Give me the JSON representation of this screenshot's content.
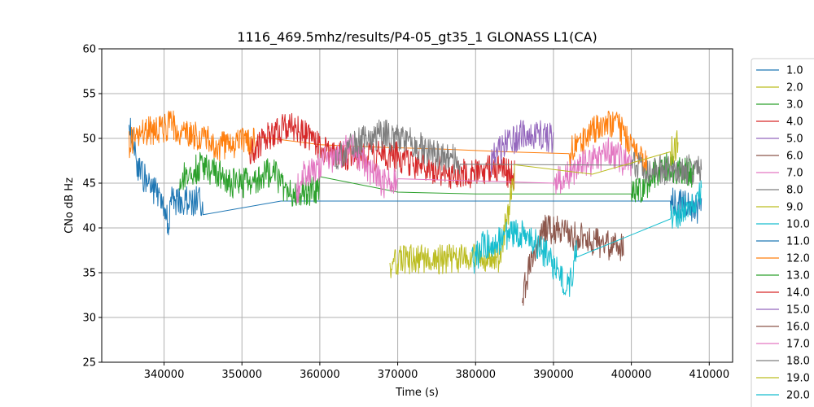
{
  "chart_data": {
    "type": "line",
    "title": "1116_469.5mhz/results/P4-05_gt35_1 GLONASS L1(CA)",
    "xlabel": "Time (s)",
    "ylabel": "CNo dB Hz",
    "xlim": [
      332000,
      413000
    ],
    "ylim": [
      25,
      60
    ],
    "xticks": [
      340000,
      350000,
      360000,
      370000,
      380000,
      390000,
      400000,
      410000
    ],
    "yticks": [
      25,
      30,
      35,
      40,
      45,
      50,
      55,
      60
    ],
    "grid": true,
    "legend_placement": "right-outside",
    "series": [
      {
        "name": "1.0",
        "color": "#1f77b4",
        "x": [],
        "y": []
      },
      {
        "name": "2.0",
        "color": "#bcbd22",
        "x": [],
        "y": []
      },
      {
        "name": "3.0",
        "color": "#2ca02c",
        "x": [],
        "y": []
      },
      {
        "name": "4.0",
        "color": "#d62728",
        "x": [],
        "y": []
      },
      {
        "name": "5.0",
        "color": "#9467bd",
        "x": [],
        "y": []
      },
      {
        "name": "6.0",
        "color": "#8c564b",
        "x": [],
        "y": []
      },
      {
        "name": "7.0",
        "color": "#e377c2",
        "x": [],
        "y": []
      },
      {
        "name": "8.0",
        "color": "#7f7f7f",
        "x": [],
        "y": []
      },
      {
        "name": "9.0",
        "color": "#bcbd22",
        "x": [],
        "y": []
      },
      {
        "name": "10.0",
        "color": "#17becf",
        "x": [],
        "y": []
      },
      {
        "name": "11.0",
        "color": "#1f77b4",
        "x": [
          335500,
          336000,
          337000,
          338000,
          339000,
          340000,
          340500,
          341000,
          345000,
          355000,
          365000,
          375000,
          385000,
          395000,
          405000,
          409000
        ],
        "y": [
          51.5,
          49,
          46,
          45,
          44,
          42,
          40.5,
          43,
          43,
          43,
          43,
          43,
          43,
          43,
          43,
          42
        ]
      },
      {
        "name": "12.0",
        "color": "#ff7f0e",
        "x": [
          335500,
          337000,
          339000,
          341000,
          343000,
          345000,
          347000,
          348500,
          352000,
          360000,
          368000,
          376000,
          384000,
          392000,
          394000,
          396000,
          398000,
          400000,
          402000
        ],
        "y": [
          49.5,
          50.5,
          51,
          51.5,
          50.5,
          50,
          49,
          49.5,
          49.5,
          49.3,
          49,
          48.8,
          48.5,
          48.3,
          50,
          51.5,
          51.5,
          49.5,
          47
        ]
      },
      {
        "name": "13.0",
        "color": "#2ca02c",
        "x": [
          342000,
          343000,
          345000,
          347000,
          348000,
          350000,
          352000,
          354000,
          355000,
          356000,
          360000,
          370000,
          380000,
          390000,
          400000,
          402000,
          404000,
          406000,
          408000
        ],
        "y": [
          45,
          46,
          47,
          46,
          45,
          45,
          45.5,
          46.5,
          45,
          44,
          44.3,
          44,
          43.8,
          43.8,
          43.8,
          45,
          47,
          46.5,
          46
        ]
      },
      {
        "name": "14.0",
        "color": "#d62728",
        "x": [
          351000,
          353000,
          355000,
          356000,
          357000,
          358000,
          359000,
          360000,
          362000,
          365000,
          367000,
          370000,
          374000,
          377000,
          379000,
          382000,
          385000
        ],
        "y": [
          48,
          50,
          51,
          51.5,
          51,
          50.5,
          50,
          49,
          48,
          48,
          48,
          48,
          46.5,
          46,
          46,
          46.5,
          46
        ]
      },
      {
        "name": "15.0",
        "color": "#9467bd",
        "x": [
          382000,
          384000,
          386000,
          388000,
          390000
        ],
        "y": [
          47.5,
          49.5,
          50.5,
          50.5,
          50
        ]
      },
      {
        "name": "16.0",
        "color": "#8c564b",
        "x": [
          386000,
          387000,
          388000,
          389000,
          391000,
          393000,
          395000,
          397000,
          399000
        ],
        "y": [
          32,
          36,
          38,
          40,
          39.5,
          39,
          38.5,
          38,
          38
        ]
      },
      {
        "name": "17.0",
        "color": "#e377c2",
        "x": [
          357000,
          358000,
          360000,
          362000,
          364000,
          366000,
          367000,
          368000,
          370000,
          390000,
          392000,
          395000,
          397000,
          399000,
          400000
        ],
        "y": [
          44,
          46,
          47,
          48,
          49,
          47,
          46,
          45,
          45,
          45,
          46,
          47.5,
          48.5,
          47.5,
          47
        ]
      },
      {
        "name": "18.0",
        "color": "#7f7f7f",
        "x": [
          362000,
          364000,
          366000,
          368000,
          370000,
          372000,
          374000,
          376000,
          378000,
          400000,
          403000,
          405000,
          407000,
          409000
        ],
        "y": [
          48,
          49,
          50,
          50.5,
          50,
          49.5,
          48.5,
          48,
          47.5,
          47,
          46.5,
          46.5,
          46.5,
          46.5
        ]
      },
      {
        "name": "19.0",
        "color": "#bcbd22",
        "x": [
          369000,
          371000,
          373000,
          375000,
          377000,
          379000,
          381000,
          383000,
          385000,
          395000,
          405000,
          406000
        ],
        "y": [
          36,
          36.5,
          36.5,
          36.5,
          36.5,
          36.8,
          36.5,
          36.5,
          45.5,
          46,
          48.5,
          49.5
        ]
      },
      {
        "name": "20.0",
        "color": "#17becf",
        "x": [
          379500,
          381000,
          383000,
          385000,
          387000,
          389000,
          391000,
          392000,
          393000,
          405000,
          406000,
          407000,
          408000,
          409000
        ],
        "y": [
          36,
          38,
          38.5,
          39.5,
          39,
          37,
          34.5,
          33,
          38,
          41,
          41.5,
          42.5,
          43,
          44
        ]
      }
    ]
  }
}
